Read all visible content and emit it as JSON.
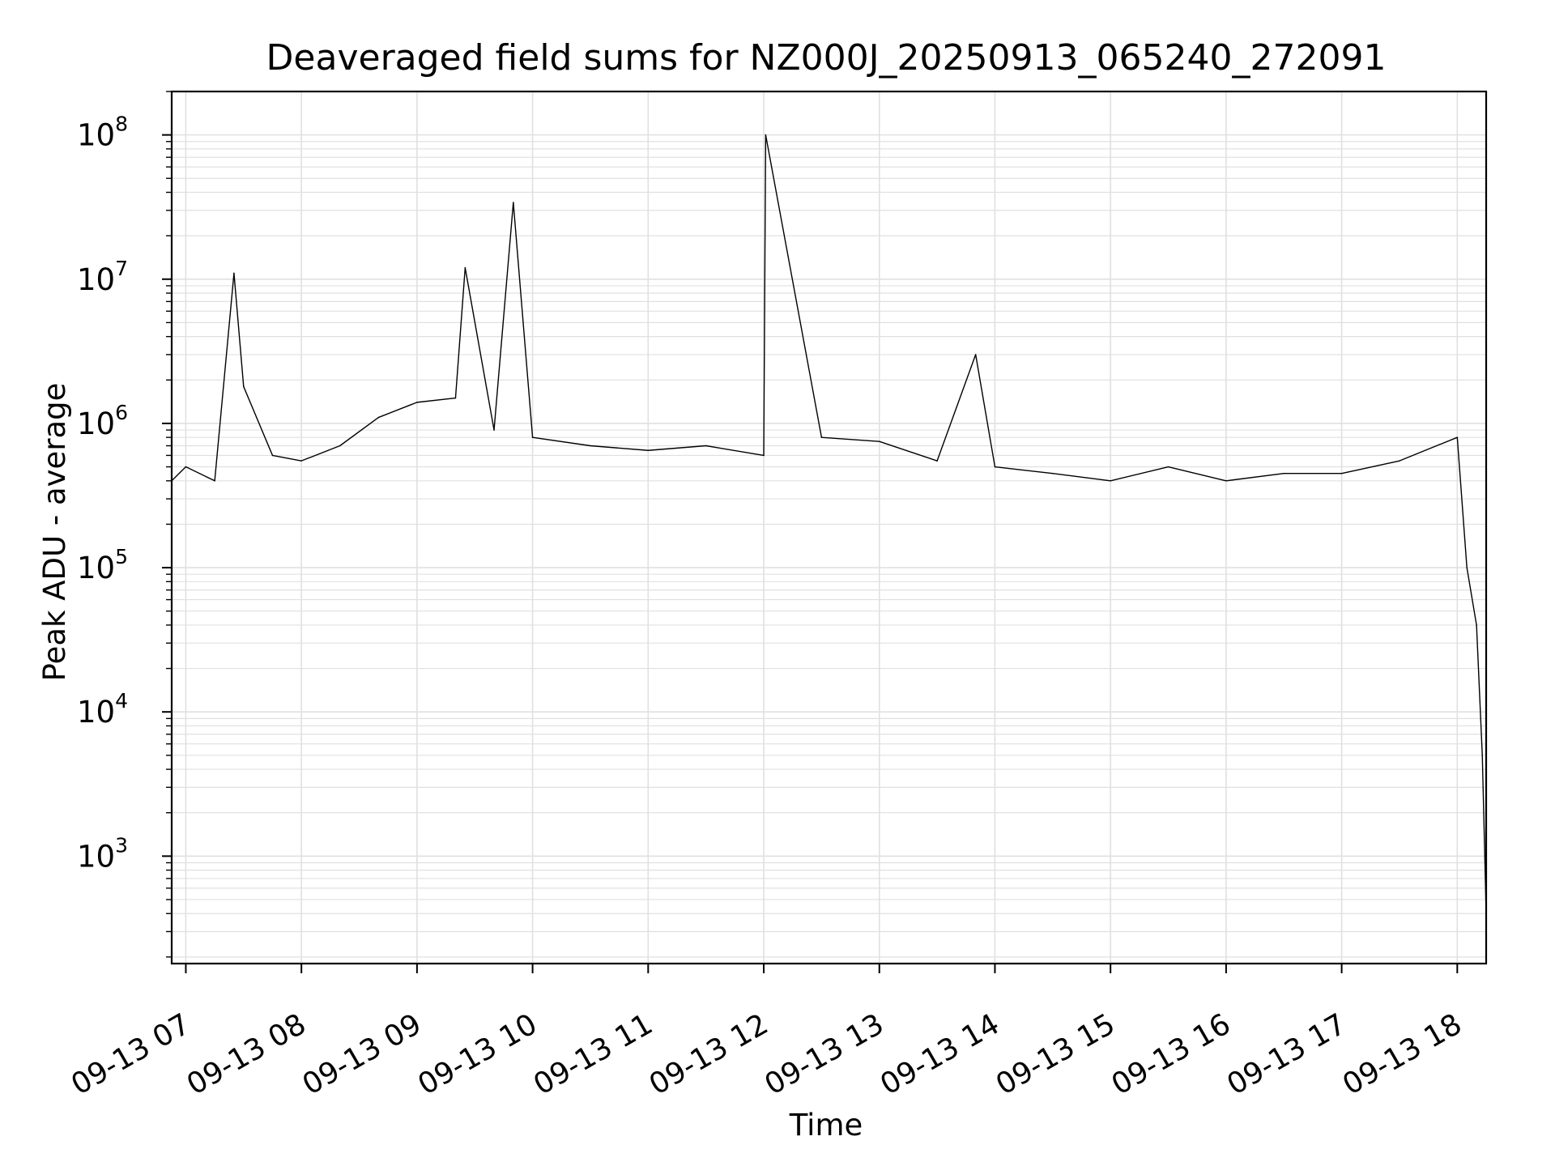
{
  "chart_data": {
    "type": "line",
    "title": "Deaveraged field sums for NZ000J_20250913_065240_272091",
    "xlabel": "Time",
    "ylabel": "Peak ADU - average",
    "xlim": [
      "2025-09-13 06:52:40",
      "2025-09-13 18:15:00"
    ],
    "ylim": [
      180,
      200000000
    ],
    "yscale": "log",
    "grid": true,
    "x_tick_labels": [
      "09-13 07",
      "09-13 08",
      "09-13 09",
      "09-13 10",
      "09-13 11",
      "09-13 12",
      "09-13 13",
      "09-13 14",
      "09-13 15",
      "09-13 16",
      "09-13 17",
      "09-13 18"
    ],
    "y_tick_labels": [
      {
        "base": "10",
        "exp": "3"
      },
      {
        "base": "10",
        "exp": "4"
      },
      {
        "base": "10",
        "exp": "5"
      },
      {
        "base": "10",
        "exp": "6"
      },
      {
        "base": "10",
        "exp": "7"
      },
      {
        "base": "10",
        "exp": "8"
      }
    ],
    "series": [
      {
        "color": "#000000",
        "x": [
          "2025-09-13 06:52:40",
          "2025-09-13 07:00",
          "2025-09-13 07:15",
          "2025-09-13 07:25",
          "2025-09-13 07:30",
          "2025-09-13 07:45",
          "2025-09-13 08:00",
          "2025-09-13 08:20",
          "2025-09-13 08:40",
          "2025-09-13 09:00",
          "2025-09-13 09:20",
          "2025-09-13 09:25",
          "2025-09-13 09:40",
          "2025-09-13 09:50",
          "2025-09-13 10:00",
          "2025-09-13 10:30",
          "2025-09-13 11:00",
          "2025-09-13 11:30",
          "2025-09-13 12:00",
          "2025-09-13 12:01",
          "2025-09-13 12:30",
          "2025-09-13 13:00",
          "2025-09-13 13:30",
          "2025-09-13 13:50",
          "2025-09-13 14:00",
          "2025-09-13 14:30",
          "2025-09-13 15:00",
          "2025-09-13 15:30",
          "2025-09-13 16:00",
          "2025-09-13 16:30",
          "2025-09-13 17:00",
          "2025-09-13 17:30",
          "2025-09-13 18:00",
          "2025-09-13 18:05",
          "2025-09-13 18:10",
          "2025-09-13 18:13",
          "2025-09-13 18:15"
        ],
        "y": [
          400000,
          500000,
          400000,
          11000000,
          1800000,
          600000,
          550000,
          700000,
          1100000,
          1400000,
          1500000,
          12000000,
          900000,
          34000000,
          800000,
          700000,
          650000,
          700000,
          600000,
          100000000,
          800000,
          750000,
          550000,
          3000000,
          500000,
          450000,
          400000,
          500000,
          400000,
          450000,
          450000,
          550000,
          800000,
          100000,
          40000,
          5000,
          400
        ]
      }
    ]
  }
}
